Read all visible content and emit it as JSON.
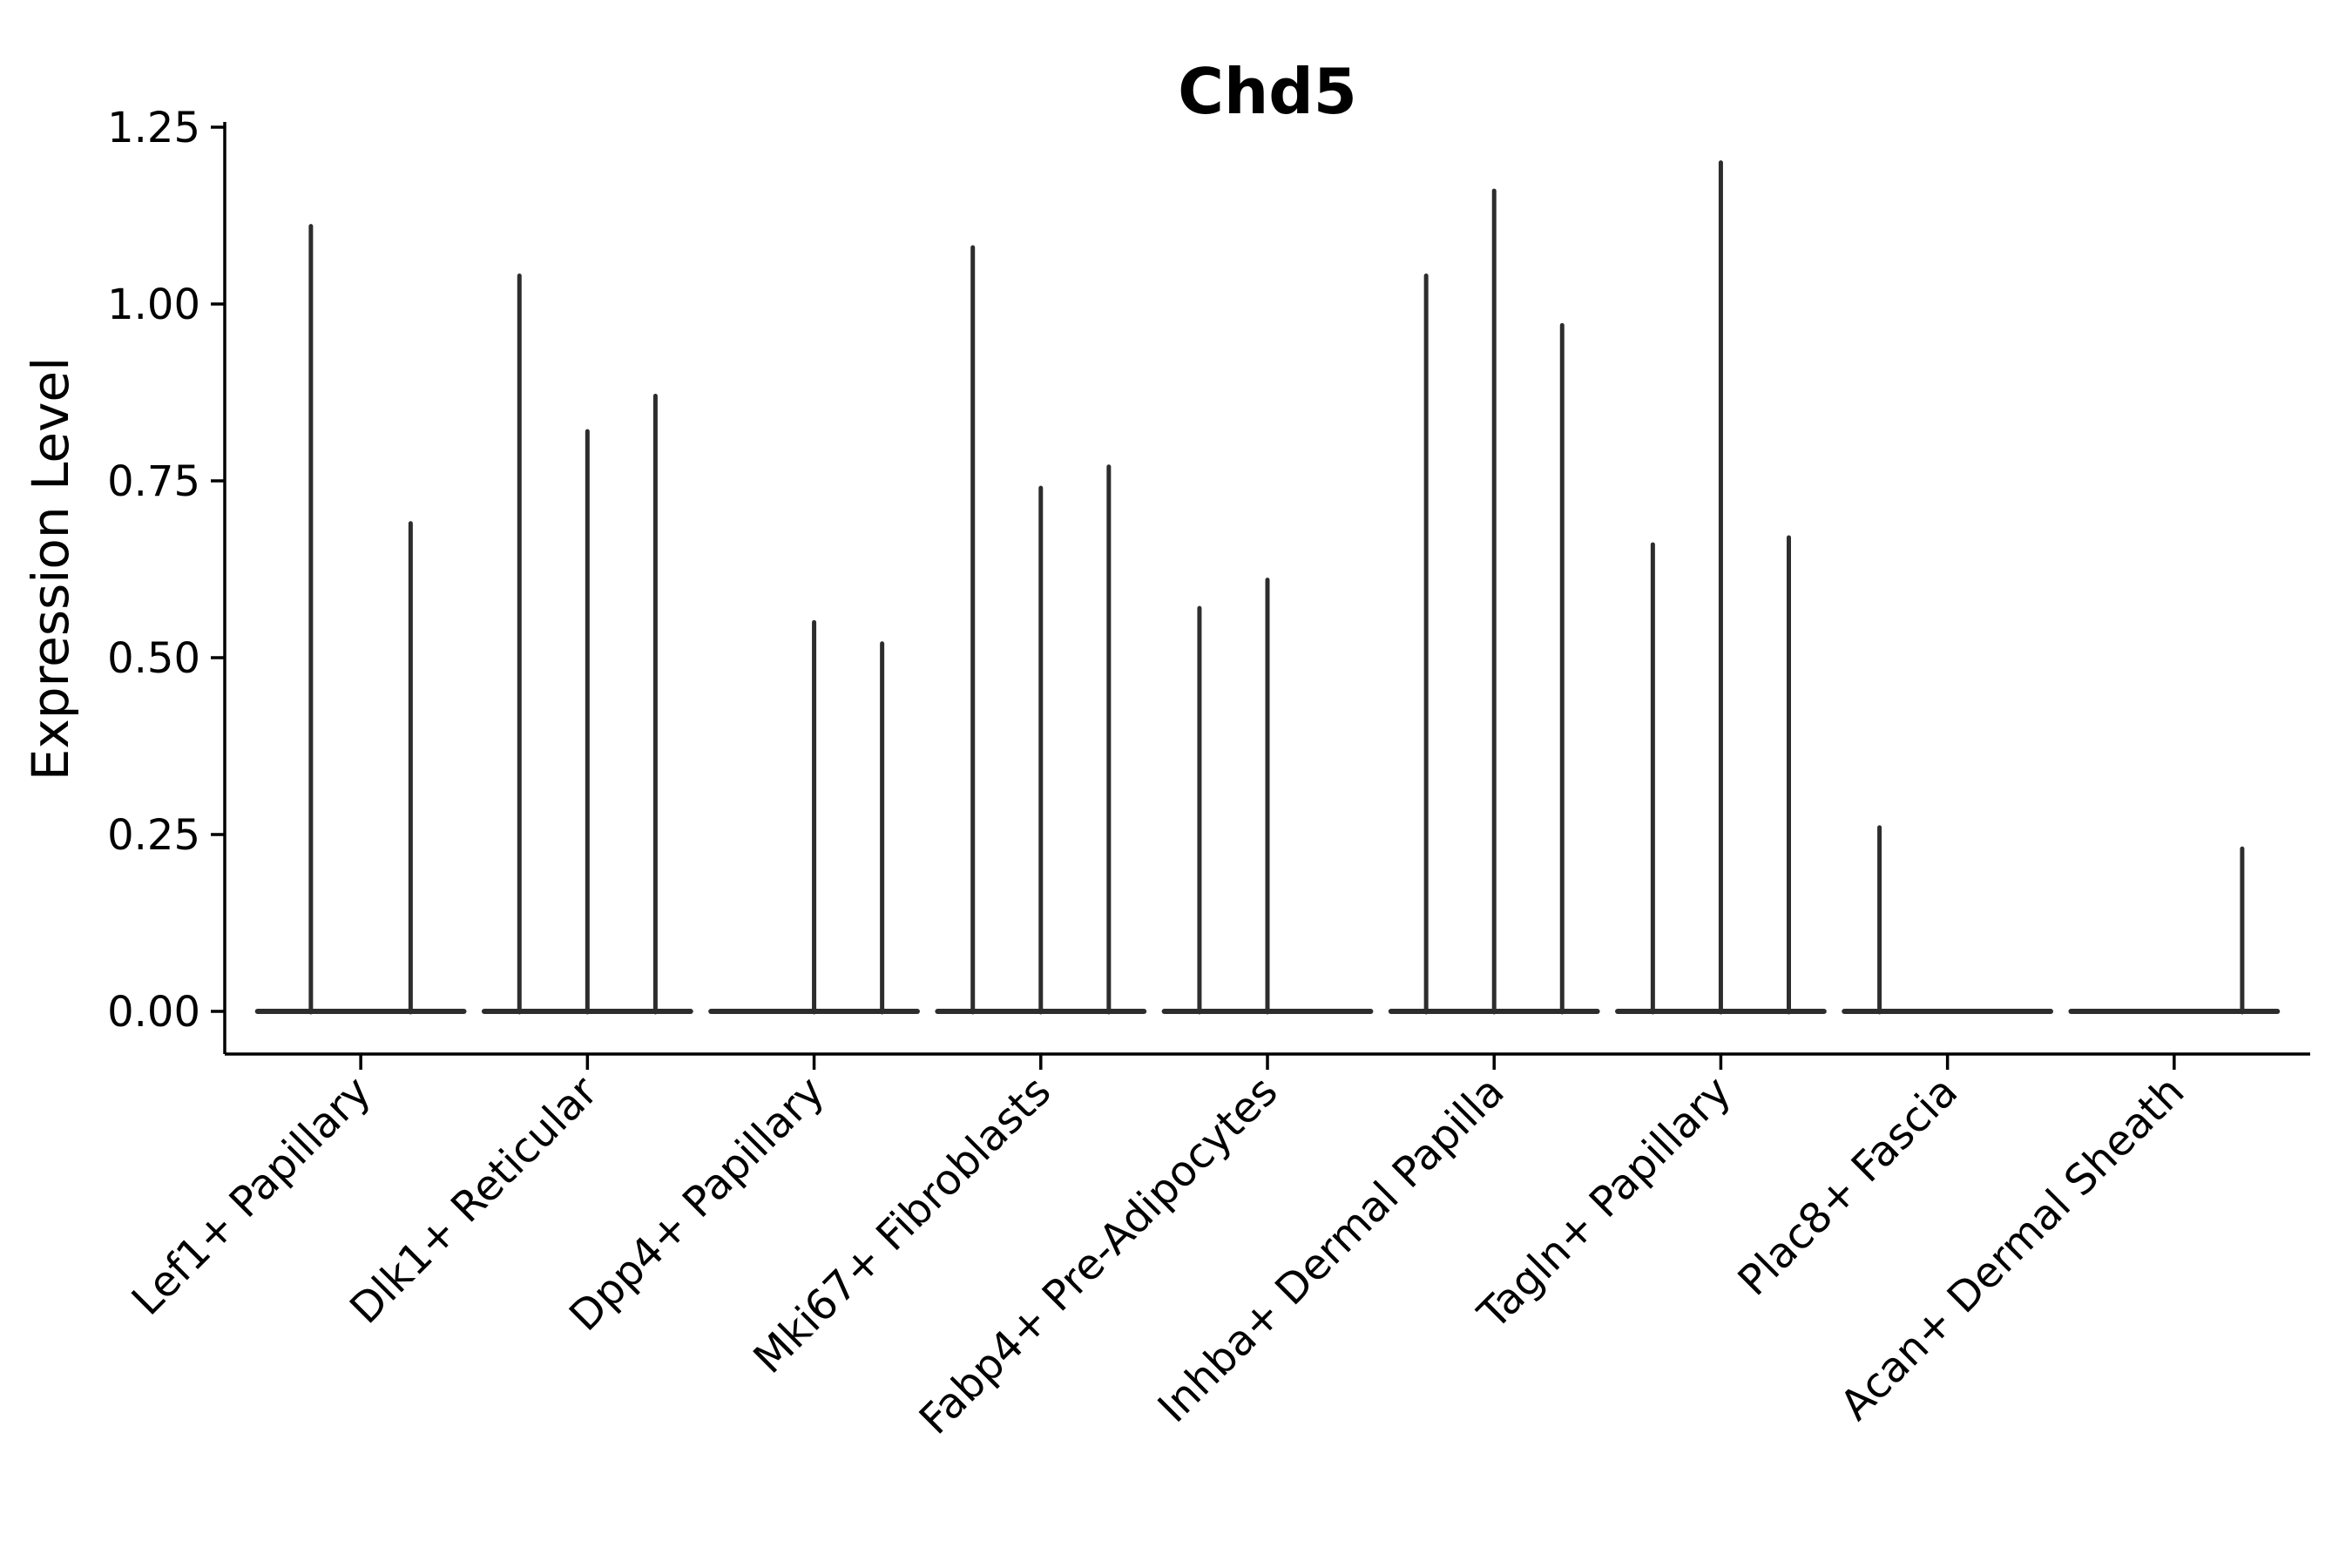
{
  "chart_data": {
    "type": "violin",
    "title": "Chd5",
    "ylabel": "Expression Level",
    "xlabel": "",
    "ylim": [
      -0.06,
      1.26
    ],
    "grid": false,
    "legend": null,
    "yticks": [
      {
        "value": 0.0,
        "label": "0.00"
      },
      {
        "value": 0.25,
        "label": "0.25"
      },
      {
        "value": 0.5,
        "label": "0.50"
      },
      {
        "value": 0.75,
        "label": "0.75"
      },
      {
        "value": 1.0,
        "label": "1.00"
      },
      {
        "value": 1.25,
        "label": "1.25"
      }
    ],
    "categories": [
      "Lef1+ Papillary",
      "Dlk1+ Reticular",
      "Dpp4+ Papillary",
      "Mki67+ Fibroblasts",
      "Fabp4+ Pre-Adipocytes",
      "Inhba+ Dermal Papilla",
      "Tagln+ Papillary",
      "Plac8+ Fascia",
      "Acan+ Dermal Sheath"
    ],
    "baseline_value": 0.0,
    "violins": [
      {
        "category": "Lef1+ Papillary",
        "spikes": [
          {
            "offset": -0.22,
            "max": 1.11
          },
          {
            "offset": 0.22,
            "max": 0.69
          }
        ]
      },
      {
        "category": "Dlk1+ Reticular",
        "spikes": [
          {
            "offset": -0.3,
            "max": 1.04
          },
          {
            "offset": 0.0,
            "max": 0.82
          },
          {
            "offset": 0.3,
            "max": 0.87
          }
        ]
      },
      {
        "category": "Dpp4+ Papillary",
        "spikes": [
          {
            "offset": 0.0,
            "max": 0.55
          },
          {
            "offset": 0.3,
            "max": 0.52
          }
        ]
      },
      {
        "category": "Mki67+ Fibroblasts",
        "spikes": [
          {
            "offset": -0.3,
            "max": 1.08
          },
          {
            "offset": 0.0,
            "max": 0.74
          },
          {
            "offset": 0.3,
            "max": 0.77
          }
        ]
      },
      {
        "category": "Fabp4+ Pre-Adipocytes",
        "spikes": [
          {
            "offset": -0.3,
            "max": 0.57
          },
          {
            "offset": 0.0,
            "max": 0.61
          }
        ]
      },
      {
        "category": "Inhba+ Dermal Papilla",
        "spikes": [
          {
            "offset": -0.3,
            "max": 1.04
          },
          {
            "offset": 0.0,
            "max": 1.16
          },
          {
            "offset": 0.3,
            "max": 0.97
          }
        ]
      },
      {
        "category": "Tagln+ Papillary",
        "spikes": [
          {
            "offset": -0.3,
            "max": 0.66
          },
          {
            "offset": 0.0,
            "max": 1.2
          },
          {
            "offset": 0.3,
            "max": 0.67
          }
        ]
      },
      {
        "category": "Plac8+ Fascia",
        "spikes": [
          {
            "offset": -0.3,
            "max": 0.26
          }
        ]
      },
      {
        "category": "Acan+ Dermal Sheath",
        "spikes": [
          {
            "offset": 0.3,
            "max": 0.23
          }
        ]
      }
    ],
    "style": {
      "violin_color": "#2d2d2d",
      "axis_color": "#000000",
      "background": "#ffffff",
      "violin_width_frac": 0.91
    }
  }
}
